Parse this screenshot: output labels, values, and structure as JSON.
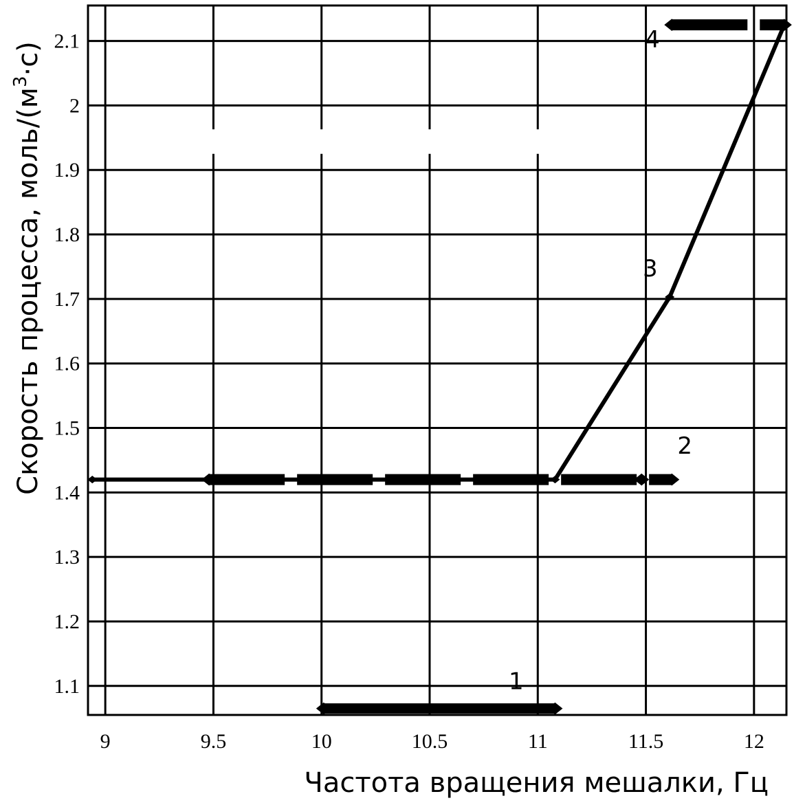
{
  "chart_data": {
    "type": "line",
    "xlabel": "Частота вращения мешалки, Гц",
    "ylabel_main": "Скорость процесса, моль/(м",
    "ylabel_sup": "3",
    "ylabel_tail": "·с)",
    "xlim": [
      8.92,
      12.15
    ],
    "ylim": [
      1.055,
      2.155
    ],
    "x_ticks": [
      {
        "value": 9,
        "label": "9"
      },
      {
        "value": 9.5,
        "label": "9.5"
      },
      {
        "value": 10,
        "label": "10"
      },
      {
        "value": 10.5,
        "label": "10.5"
      },
      {
        "value": 11,
        "label": "11"
      },
      {
        "value": 11.5,
        "label": "11.5"
      },
      {
        "value": 12,
        "label": "12"
      }
    ],
    "y_ticks": [
      {
        "value": 1.1,
        "label": "1.1"
      },
      {
        "value": 1.2,
        "label": "1.2"
      },
      {
        "value": 1.3,
        "label": "1.3"
      },
      {
        "value": 1.4,
        "label": "1.4"
      },
      {
        "value": 1.5,
        "label": "1.5"
      },
      {
        "value": 1.6,
        "label": "1.6"
      },
      {
        "value": 1.7,
        "label": "1.7"
      },
      {
        "value": 1.8,
        "label": "1.8"
      },
      {
        "value": 1.9,
        "label": "1.9"
      },
      {
        "value": 2.0,
        "label": "2"
      },
      {
        "value": 2.1,
        "label": "2.1"
      }
    ],
    "grid": true,
    "series": [
      {
        "style": "thick",
        "points": [
          [
            10.01,
            1.065
          ],
          [
            11.08,
            1.065
          ]
        ]
      },
      {
        "style": "thick-dashed",
        "points": [
          [
            9.48,
            1.42
          ],
          [
            11.48,
            1.42
          ],
          [
            11.62,
            1.42
          ]
        ]
      },
      {
        "style": "thin",
        "points": [
          [
            8.94,
            1.42
          ],
          [
            11.08,
            1.42
          ],
          [
            11.61,
            1.703
          ],
          [
            12.14,
            2.125
          ]
        ]
      },
      {
        "style": "thick-dashed",
        "points": [
          [
            11.62,
            2.125
          ],
          [
            12.14,
            2.125
          ]
        ]
      }
    ],
    "annotations": [
      {
        "text": "1",
        "x": 10.9,
        "y": 1.095
      },
      {
        "text": "2",
        "x": 11.68,
        "y": 1.46
      },
      {
        "text": "3",
        "x": 11.52,
        "y": 1.735
      },
      {
        "text": "4",
        "x": 11.53,
        "y": 2.09
      }
    ]
  }
}
